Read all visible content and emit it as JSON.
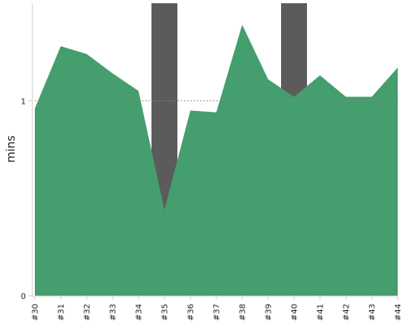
{
  "chart_data": {
    "type": "area",
    "title": "",
    "xlabel": "",
    "ylabel": "mins",
    "ylim": [
      0,
      1.5
    ],
    "yticks": [
      0,
      1
    ],
    "ytick_labels": [
      "0",
      "1"
    ],
    "reference_line": 1,
    "categories": [
      "#30",
      "#31",
      "#32",
      "#33",
      "#34",
      "#35",
      "#36",
      "#37",
      "#38",
      "#39",
      "#40",
      "#41",
      "#42",
      "#43",
      "#44"
    ],
    "values": [
      0.96,
      1.28,
      1.24,
      1.14,
      1.05,
      0.44,
      0.95,
      0.94,
      1.39,
      1.11,
      1.02,
      1.13,
      1.02,
      1.02,
      1.17
    ],
    "highlighted_categories": [
      "#35",
      "#40"
    ],
    "colors": {
      "area": "#449e6e",
      "highlight": "#5b5b5b",
      "axis": "#cccccc",
      "reference": "#888888",
      "text": "#222222"
    },
    "grid": false,
    "legend": "none"
  }
}
